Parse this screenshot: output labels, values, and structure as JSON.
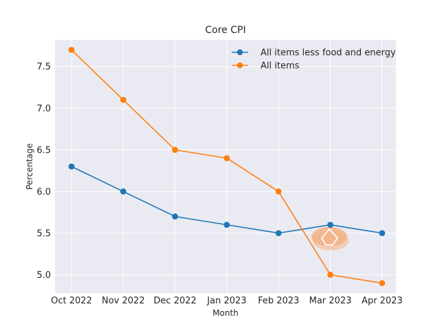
{
  "chart_data": {
    "type": "line",
    "title": "Core CPI",
    "xlabel": "Month",
    "ylabel": "Percentage",
    "categories": [
      "Oct 2022",
      "Nov 2022",
      "Dec 2022",
      "Jan 2023",
      "Feb 2023",
      "Mar 2023",
      "Apr 2023"
    ],
    "ylim": [
      4.78,
      7.82
    ],
    "yticks": [
      5.0,
      5.5,
      6.0,
      6.5,
      7.0,
      7.5
    ],
    "ytick_labels": [
      "5.0",
      "5.5",
      "6.0",
      "6.5",
      "7.0",
      "7.5"
    ],
    "grid": true,
    "legend_position": "top-right",
    "series": [
      {
        "name": "All items less food and energy",
        "color": "#1f77b4",
        "values": [
          6.3,
          6.0,
          5.7,
          5.6,
          5.5,
          5.6,
          5.5
        ]
      },
      {
        "name": "All items",
        "color": "#ff7f0e",
        "values": [
          7.7,
          7.1,
          6.5,
          6.4,
          6.0,
          5.0,
          4.9
        ]
      }
    ]
  },
  "colors": {
    "plot_background": "#eaeaf2",
    "grid": "#ffffff",
    "text": "#262626",
    "watermark": "#f4b183"
  }
}
